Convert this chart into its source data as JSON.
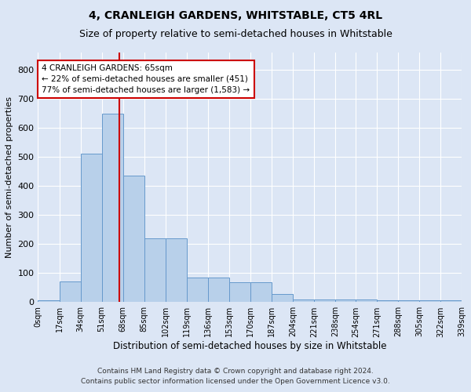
{
  "title": "4, CRANLEIGH GARDENS, WHITSTABLE, CT5 4RL",
  "subtitle": "Size of property relative to semi-detached houses in Whitstable",
  "xlabel": "Distribution of semi-detached houses by size in Whitstable",
  "ylabel": "Number of semi-detached properties",
  "footnote1": "Contains HM Land Registry data © Crown copyright and database right 2024.",
  "footnote2": "Contains public sector information licensed under the Open Government Licence v3.0.",
  "bar_edges": [
    0,
    17,
    34,
    51,
    68,
    85,
    102,
    119,
    136,
    153,
    170,
    187,
    204,
    221,
    238,
    254,
    271,
    288,
    305,
    322,
    339
  ],
  "bar_heights": [
    5,
    70,
    512,
    648,
    437,
    219,
    219,
    85,
    85,
    67,
    67,
    28,
    10,
    10,
    10,
    10,
    5,
    5,
    5,
    5
  ],
  "tick_labels": [
    "0sqm",
    "17sqm",
    "34sqm",
    "51sqm",
    "68sqm",
    "85sqm",
    "102sqm",
    "119sqm",
    "136sqm",
    "153sqm",
    "170sqm",
    "187sqm",
    "204sqm",
    "221sqm",
    "238sqm",
    "254sqm",
    "271sqm",
    "288sqm",
    "305sqm",
    "322sqm",
    "339sqm"
  ],
  "bar_color": "#b8d0ea",
  "bar_edge_color": "#6699cc",
  "vline_x": 65,
  "vline_color": "#cc0000",
  "annotation_text": "4 CRANLEIGH GARDENS: 65sqm\n← 22% of semi-detached houses are smaller (451)\n77% of semi-detached houses are larger (1,583) →",
  "annotation_box_color": "#ffffff",
  "annotation_box_edge": "#cc0000",
  "ylim": [
    0,
    860
  ],
  "yticks": [
    0,
    100,
    200,
    300,
    400,
    500,
    600,
    700,
    800
  ],
  "background_color": "#dce6f5",
  "plot_bg_color": "#dce6f5",
  "grid_color": "#ffffff",
  "title_fontsize": 10,
  "subtitle_fontsize": 9
}
